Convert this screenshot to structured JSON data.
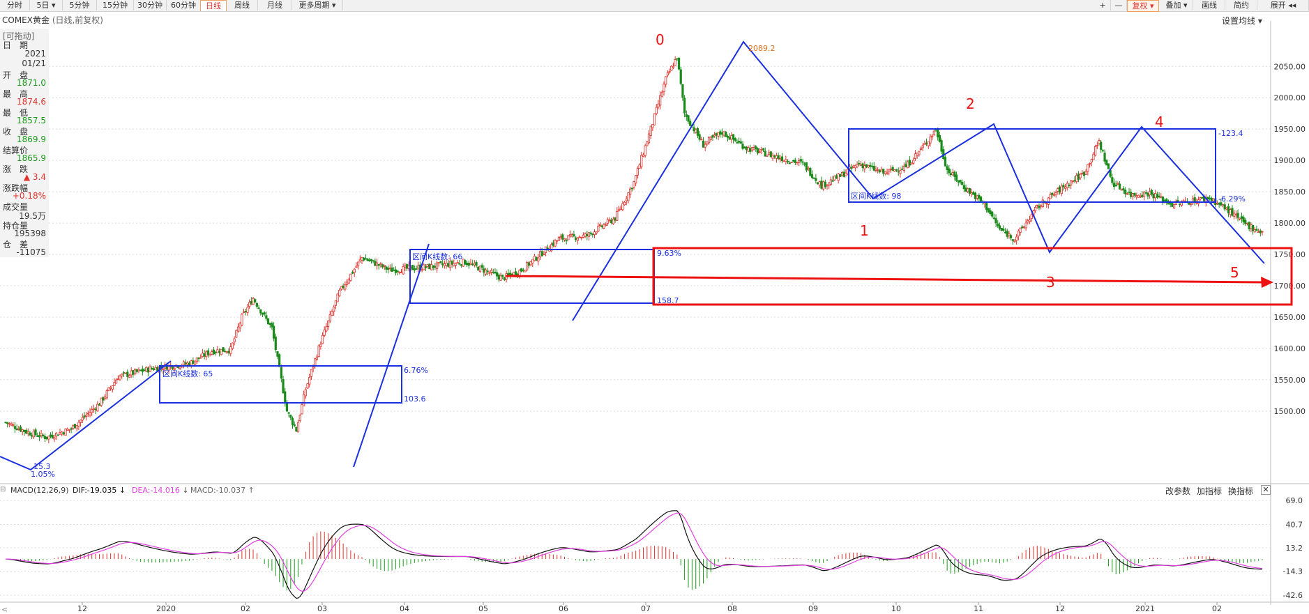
{
  "toolbar": {
    "periods": [
      "分时",
      "5日",
      "5分钟",
      "15分钟",
      "30分钟",
      "60分钟",
      "日线",
      "周线",
      "月线",
      "更多周期"
    ],
    "active_period": "日线",
    "right_buttons": [
      "+",
      "—",
      "复权",
      "叠加",
      "画线",
      "简约",
      "展开"
    ]
  },
  "subtitle": {
    "name": "COMEX黄金",
    "info": "(日线,前复权)"
  },
  "set_ma": "设置均线",
  "info_panel": {
    "drag": "[可拖动]",
    "rows": [
      {
        "label": "日　期",
        "value": "2021",
        "value2": "01/21",
        "color": "#333333"
      },
      {
        "label": "开　盘",
        "value": "1871.0",
        "color": "#1a9a1a"
      },
      {
        "label": "最　高",
        "value": "1874.6",
        "color": "#e0312b"
      },
      {
        "label": "最　低",
        "value": "1857.5",
        "color": "#1a9a1a"
      },
      {
        "label": "收　盘",
        "value": "1869.9",
        "color": "#1a9a1a"
      },
      {
        "label": "结算价",
        "value": "1865.9",
        "color": "#1a9a1a"
      },
      {
        "label": "涨　跌",
        "value": "▲ 3.4",
        "color": "#e0312b"
      },
      {
        "label": "涨跌幅",
        "value": "+0.18%",
        "color": "#e0312b"
      },
      {
        "label": "成交量",
        "value": "19.5万",
        "color": "#333333"
      },
      {
        "label": "持仓量",
        "value": "195398",
        "color": "#333333"
      },
      {
        "label": "仓　差",
        "value": "-11075",
        "color": "#333333"
      }
    ]
  },
  "macd": {
    "title": "MACD(12,26,9)",
    "dif": "DIF:-19.035",
    "dea": "DEA:-14.016",
    "macd": "MACD:-10.037",
    "buttons": [
      "改参数",
      "加指标",
      "换指标"
    ],
    "ticks": [
      "69.0",
      "40.7",
      "13.2",
      "-14.3",
      "-42.6"
    ]
  },
  "chart_data": {
    "type": "candlestick",
    "y_ticks": [
      "2050.00",
      "2000.00",
      "1950.00",
      "1900.00",
      "1850.00",
      "1800.00",
      "1750.00",
      "1700.00",
      "1650.00",
      "1600.00",
      "1550.00",
      "1500.00"
    ],
    "ylim": [
      1440,
      2110
    ],
    "x_ticks": [
      "12",
      "2020",
      "02",
      "03",
      "04",
      "05",
      "06",
      "07",
      "08",
      "09",
      "10",
      "11",
      "12",
      "2021",
      "02"
    ],
    "price_path": [
      [
        0,
        1482
      ],
      [
        12,
        1466
      ],
      [
        22,
        1458
      ],
      [
        35,
        1472
      ],
      [
        50,
        1512
      ],
      [
        60,
        1555
      ],
      [
        78,
        1568
      ],
      [
        98,
        1576
      ],
      [
        110,
        1596
      ],
      [
        120,
        1598
      ],
      [
        126,
        1650
      ],
      [
        132,
        1680
      ],
      [
        142,
        1632
      ],
      [
        150,
        1500
      ],
      [
        155,
        1470
      ],
      [
        160,
        1535
      ],
      [
        168,
        1610
      ],
      [
        178,
        1690
      ],
      [
        190,
        1745
      ],
      [
        205,
        1725
      ],
      [
        225,
        1730
      ],
      [
        245,
        1738
      ],
      [
        265,
        1712
      ],
      [
        275,
        1725
      ],
      [
        295,
        1775
      ],
      [
        310,
        1780
      ],
      [
        325,
        1808
      ],
      [
        335,
        1865
      ],
      [
        345,
        1960
      ],
      [
        352,
        2030
      ],
      [
        358,
        2065
      ],
      [
        362,
        1975
      ],
      [
        372,
        1925
      ],
      [
        382,
        1945
      ],
      [
        395,
        1920
      ],
      [
        412,
        1905
      ],
      [
        425,
        1895
      ],
      [
        435,
        1860
      ],
      [
        445,
        1875
      ],
      [
        455,
        1895
      ],
      [
        468,
        1880
      ],
      [
        480,
        1890
      ],
      [
        490,
        1925
      ],
      [
        496,
        1950
      ],
      [
        502,
        1885
      ],
      [
        512,
        1855
      ],
      [
        522,
        1830
      ],
      [
        530,
        1790
      ],
      [
        538,
        1775
      ],
      [
        550,
        1825
      ],
      [
        565,
        1860
      ],
      [
        575,
        1880
      ],
      [
        583,
        1930
      ],
      [
        590,
        1865
      ],
      [
        600,
        1845
      ],
      [
        610,
        1848
      ],
      [
        622,
        1830
      ],
      [
        632,
        1835
      ],
      [
        642,
        1840
      ],
      [
        652,
        1820
      ],
      [
        660,
        1800
      ],
      [
        670,
        1785
      ]
    ],
    "annotations": {
      "wave_labels": [
        "0",
        "1",
        "2",
        "3",
        "4",
        "5"
      ],
      "boxes": [
        {
          "label": "区间K线数: 65",
          "pct": "6.76%",
          "range": "103.6"
        },
        {
          "label": "区间K线数: 66",
          "pct": "9.63%",
          "range": "158.7"
        },
        {
          "label": "区间K线数: 98",
          "pct": "-6.29%",
          "range": "-123.4"
        }
      ],
      "peak": "2089.2",
      "low_labels": [
        "15.3",
        "1.05%"
      ]
    }
  }
}
